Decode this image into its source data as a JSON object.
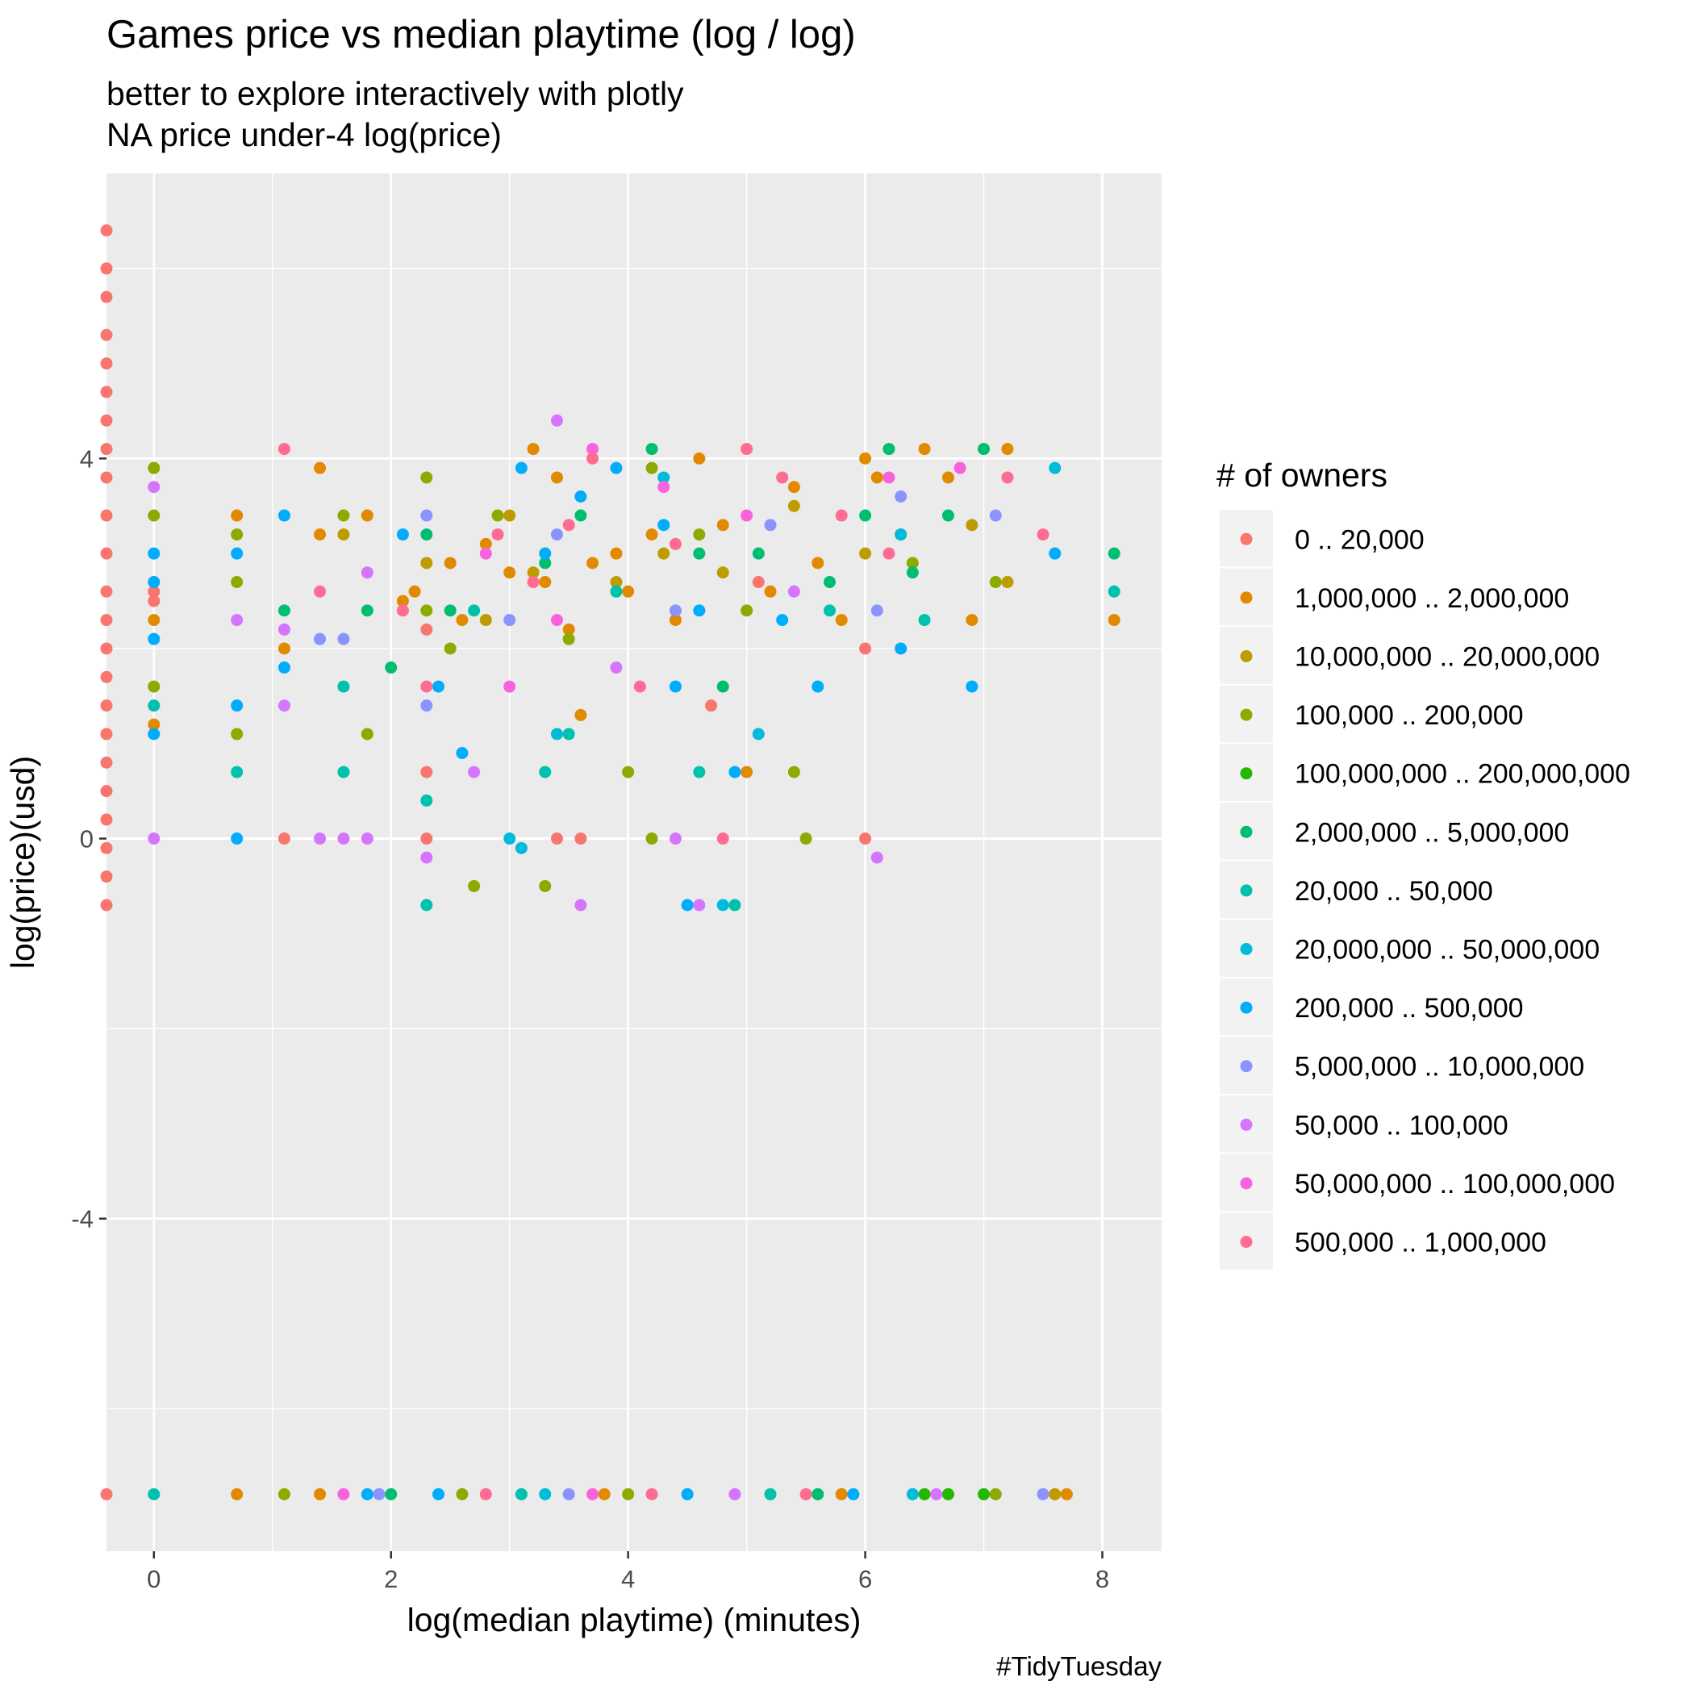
{
  "chart_data": {
    "type": "scatter",
    "title": "Games price vs median playtime (log / log)",
    "subtitle_lines": [
      "better to explore interactively with plotly",
      "NA price under-4 log(price)"
    ],
    "xlabel": "log(median playtime) (minutes)",
    "ylabel": "log(price)(usd)",
    "caption": "#TidyTuesday",
    "xlim": [
      -0.4,
      8.5
    ],
    "ylim": [
      -7.5,
      7.0
    ],
    "x_ticks": [
      0,
      2,
      4,
      6,
      8
    ],
    "x_tick_labels": [
      "0",
      "2",
      "4",
      "6",
      "8"
    ],
    "y_ticks": [
      -4,
      0,
      4
    ],
    "y_tick_labels": [
      "-4",
      "0",
      "4"
    ],
    "grid": true,
    "legend": {
      "title": "# of owners",
      "position": "right",
      "entries": [
        {
          "label": "0 .. 20,000",
          "color": "#F8766D"
        },
        {
          "label": "1,000,000 .. 2,000,000",
          "color": "#E18A00"
        },
        {
          "label": "10,000,000 .. 20,000,000",
          "color": "#BE9C00"
        },
        {
          "label": "100,000 .. 200,000",
          "color": "#8CAB00"
        },
        {
          "label": "100,000,000 .. 200,000,000",
          "color": "#24B700"
        },
        {
          "label": "2,000,000 .. 5,000,000",
          "color": "#00BE70"
        },
        {
          "label": "20,000 .. 50,000",
          "color": "#00C1AB"
        },
        {
          "label": "20,000,000 .. 50,000,000",
          "color": "#00BBDA"
        },
        {
          "label": "200,000 .. 500,000",
          "color": "#00ACFC"
        },
        {
          "label": "5,000,000 .. 10,000,000",
          "color": "#8B93FF"
        },
        {
          "label": "50,000 .. 100,000",
          "color": "#D575FE"
        },
        {
          "label": "50,000,000 .. 100,000,000",
          "color": "#F962DD"
        },
        {
          "label": "500,000 .. 1,000,000",
          "color": "#FF6C91"
        }
      ]
    },
    "series": [
      {
        "name": "0 .. 20,000",
        "points": [
          [
            -0.4,
            6.4
          ],
          [
            -0.4,
            6.0
          ],
          [
            -0.4,
            5.7
          ],
          [
            -0.4,
            5.3
          ],
          [
            -0.4,
            5.0
          ],
          [
            -0.4,
            4.7
          ],
          [
            -0.4,
            4.4
          ],
          [
            -0.4,
            4.1
          ],
          [
            -0.4,
            3.8
          ],
          [
            -0.4,
            3.4
          ],
          [
            -0.4,
            3.0
          ],
          [
            -0.4,
            2.6
          ],
          [
            -0.4,
            2.3
          ],
          [
            -0.4,
            2.0
          ],
          [
            -0.4,
            1.7
          ],
          [
            -0.4,
            1.4
          ],
          [
            -0.4,
            1.1
          ],
          [
            -0.4,
            0.8
          ],
          [
            -0.4,
            0.5
          ],
          [
            -0.4,
            0.2
          ],
          [
            -0.4,
            -0.1
          ],
          [
            -0.4,
            -0.4
          ],
          [
            -0.4,
            -0.7
          ],
          [
            0.0,
            2.6
          ],
          [
            0.0,
            2.5
          ],
          [
            1.1,
            0.0
          ],
          [
            2.3,
            0.7
          ],
          [
            2.3,
            0.0
          ],
          [
            2.3,
            2.2
          ],
          [
            3.4,
            0.0
          ],
          [
            3.6,
            0.0
          ],
          [
            4.7,
            1.4
          ],
          [
            5.1,
            2.7
          ],
          [
            6.0,
            2.0
          ],
          [
            6.0,
            0.0
          ],
          [
            -0.4,
            -6.9
          ]
        ]
      },
      {
        "name": "1,000,000 .. 2,000,000",
        "points": [
          [
            0.0,
            1.2
          ],
          [
            0.0,
            2.3
          ],
          [
            0.7,
            3.4
          ],
          [
            1.4,
            3.9
          ],
          [
            1.4,
            3.2
          ],
          [
            1.1,
            2.0
          ],
          [
            1.8,
            3.4
          ],
          [
            2.1,
            2.5
          ],
          [
            2.2,
            2.6
          ],
          [
            2.5,
            2.9
          ],
          [
            2.6,
            2.3
          ],
          [
            2.8,
            3.1
          ],
          [
            3.0,
            2.8
          ],
          [
            3.2,
            4.1
          ],
          [
            3.3,
            2.7
          ],
          [
            3.4,
            3.8
          ],
          [
            3.5,
            2.2
          ],
          [
            3.6,
            1.3
          ],
          [
            3.7,
            2.9
          ],
          [
            3.9,
            3.0
          ],
          [
            4.0,
            2.6
          ],
          [
            4.2,
            3.2
          ],
          [
            4.4,
            2.3
          ],
          [
            4.6,
            4.0
          ],
          [
            4.8,
            3.3
          ],
          [
            5.0,
            0.7
          ],
          [
            5.2,
            2.6
          ],
          [
            5.4,
            3.7
          ],
          [
            5.6,
            2.9
          ],
          [
            5.8,
            2.3
          ],
          [
            6.0,
            4.0
          ],
          [
            6.1,
            3.8
          ],
          [
            6.3,
            3.2
          ],
          [
            6.5,
            4.1
          ],
          [
            6.7,
            3.8
          ],
          [
            6.9,
            2.3
          ],
          [
            7.2,
            4.1
          ],
          [
            8.1,
            2.3
          ],
          [
            0.7,
            -6.9
          ],
          [
            1.4,
            -6.9
          ],
          [
            3.8,
            -6.9
          ],
          [
            5.8,
            -6.9
          ],
          [
            7.7,
            -6.9
          ]
        ]
      },
      {
        "name": "10,000,000 .. 20,000,000",
        "points": [
          [
            1.6,
            3.2
          ],
          [
            2.3,
            2.9
          ],
          [
            2.8,
            2.3
          ],
          [
            3.0,
            3.4
          ],
          [
            3.2,
            2.8
          ],
          [
            3.9,
            2.7
          ],
          [
            4.3,
            3.0
          ],
          [
            4.8,
            2.8
          ],
          [
            5.4,
            3.5
          ],
          [
            6.0,
            3.0
          ],
          [
            6.9,
            3.3
          ],
          [
            7.2,
            2.7
          ],
          [
            7.6,
            -6.9
          ]
        ]
      },
      {
        "name": "100,000 .. 200,000",
        "points": [
          [
            0.0,
            3.9
          ],
          [
            0.0,
            3.4
          ],
          [
            0.0,
            1.6
          ],
          [
            0.7,
            3.2
          ],
          [
            0.7,
            2.7
          ],
          [
            0.7,
            1.1
          ],
          [
            1.6,
            3.4
          ],
          [
            1.8,
            1.1
          ],
          [
            2.3,
            3.8
          ],
          [
            2.3,
            2.4
          ],
          [
            2.5,
            2.0
          ],
          [
            2.7,
            -0.5
          ],
          [
            2.9,
            3.4
          ],
          [
            3.3,
            -0.5
          ],
          [
            3.5,
            2.1
          ],
          [
            4.0,
            0.7
          ],
          [
            4.2,
            3.9
          ],
          [
            4.2,
            0.0
          ],
          [
            4.6,
            3.2
          ],
          [
            5.0,
            2.4
          ],
          [
            5.4,
            0.7
          ],
          [
            5.5,
            0.0
          ],
          [
            6.4,
            2.9
          ],
          [
            7.1,
            2.7
          ],
          [
            1.1,
            -6.9
          ],
          [
            2.6,
            -6.9
          ],
          [
            4.0,
            -6.9
          ],
          [
            7.1,
            -6.9
          ]
        ]
      },
      {
        "name": "100,000,000 .. 200,000,000",
        "points": [
          [
            6.5,
            -6.9
          ],
          [
            6.7,
            -6.9
          ],
          [
            7.0,
            -6.9
          ]
        ]
      },
      {
        "name": "2,000,000 .. 5,000,000",
        "points": [
          [
            1.1,
            2.4
          ],
          [
            1.8,
            2.4
          ],
          [
            2.0,
            1.8
          ],
          [
            2.3,
            3.2
          ],
          [
            2.5,
            2.4
          ],
          [
            3.3,
            2.9
          ],
          [
            3.6,
            3.4
          ],
          [
            4.2,
            4.1
          ],
          [
            4.6,
            3.0
          ],
          [
            4.8,
            1.6
          ],
          [
            5.1,
            3.0
          ],
          [
            5.7,
            2.7
          ],
          [
            6.0,
            3.4
          ],
          [
            6.2,
            4.1
          ],
          [
            6.4,
            2.8
          ],
          [
            6.7,
            3.4
          ],
          [
            7.0,
            4.1
          ],
          [
            8.1,
            3.0
          ],
          [
            2.0,
            -6.9
          ],
          [
            5.6,
            -6.9
          ]
        ]
      },
      {
        "name": "20,000 .. 50,000",
        "points": [
          [
            0.0,
            1.4
          ],
          [
            0.7,
            0.7
          ],
          [
            1.6,
            1.6
          ],
          [
            1.6,
            0.7
          ],
          [
            2.3,
            0.4
          ],
          [
            2.3,
            -0.7
          ],
          [
            2.7,
            2.4
          ],
          [
            3.3,
            0.7
          ],
          [
            3.5,
            1.1
          ],
          [
            3.9,
            2.6
          ],
          [
            4.6,
            0.7
          ],
          [
            4.9,
            -0.7
          ],
          [
            5.7,
            2.4
          ],
          [
            6.5,
            2.3
          ],
          [
            8.1,
            2.6
          ],
          [
            0.0,
            -6.9
          ],
          [
            3.1,
            -6.9
          ],
          [
            5.2,
            -6.9
          ]
        ]
      },
      {
        "name": "20,000,000 .. 50,000,000",
        "points": [
          [
            3.0,
            0.0
          ],
          [
            3.1,
            -0.1
          ],
          [
            3.4,
            1.1
          ],
          [
            4.3,
            3.8
          ],
          [
            4.8,
            -0.7
          ],
          [
            5.1,
            1.1
          ],
          [
            6.3,
            3.2
          ],
          [
            7.6,
            3.9
          ],
          [
            3.3,
            -6.9
          ],
          [
            6.4,
            -6.9
          ]
        ]
      },
      {
        "name": "200,000 .. 500,000",
        "points": [
          [
            0.0,
            3.0
          ],
          [
            0.0,
            2.7
          ],
          [
            0.0,
            2.1
          ],
          [
            0.0,
            1.1
          ],
          [
            0.7,
            3.0
          ],
          [
            0.7,
            1.4
          ],
          [
            0.7,
            0.0
          ],
          [
            1.1,
            3.4
          ],
          [
            1.1,
            1.8
          ],
          [
            2.1,
            3.2
          ],
          [
            2.4,
            1.6
          ],
          [
            2.6,
            0.9
          ],
          [
            3.1,
            3.9
          ],
          [
            3.3,
            3.0
          ],
          [
            3.6,
            3.6
          ],
          [
            3.9,
            3.9
          ],
          [
            4.3,
            3.3
          ],
          [
            4.4,
            1.6
          ],
          [
            4.5,
            -0.7
          ],
          [
            4.6,
            2.4
          ],
          [
            4.9,
            0.7
          ],
          [
            5.3,
            2.3
          ],
          [
            5.6,
            1.6
          ],
          [
            6.3,
            2.0
          ],
          [
            6.9,
            1.6
          ],
          [
            7.6,
            3.0
          ],
          [
            1.8,
            -6.9
          ],
          [
            2.4,
            -6.9
          ],
          [
            4.5,
            -6.9
          ],
          [
            5.9,
            -6.9
          ]
        ]
      },
      {
        "name": "5,000,000 .. 10,000,000",
        "points": [
          [
            1.4,
            2.1
          ],
          [
            1.6,
            2.1
          ],
          [
            2.3,
            3.4
          ],
          [
            2.3,
            1.4
          ],
          [
            3.0,
            2.3
          ],
          [
            3.4,
            3.2
          ],
          [
            4.4,
            2.4
          ],
          [
            5.2,
            3.3
          ],
          [
            6.1,
            2.4
          ],
          [
            6.3,
            3.6
          ],
          [
            7.1,
            3.4
          ],
          [
            1.9,
            -6.9
          ],
          [
            3.5,
            -6.9
          ],
          [
            7.5,
            -6.9
          ]
        ]
      },
      {
        "name": "50,000 .. 100,000",
        "points": [
          [
            0.0,
            3.7
          ],
          [
            0.0,
            0.0
          ],
          [
            0.7,
            2.3
          ],
          [
            1.1,
            2.2
          ],
          [
            1.1,
            1.4
          ],
          [
            1.4,
            0.0
          ],
          [
            1.6,
            0.0
          ],
          [
            1.8,
            0.0
          ],
          [
            1.8,
            2.8
          ],
          [
            2.3,
            -0.2
          ],
          [
            2.7,
            0.7
          ],
          [
            3.4,
            4.4
          ],
          [
            3.6,
            -0.7
          ],
          [
            3.9,
            1.8
          ],
          [
            4.4,
            0.0
          ],
          [
            4.6,
            -0.7
          ],
          [
            5.4,
            2.6
          ],
          [
            6.1,
            -0.2
          ],
          [
            4.9,
            -6.9
          ],
          [
            6.6,
            -6.9
          ]
        ]
      },
      {
        "name": "50,000,000 .. 100,000,000",
        "points": [
          [
            2.8,
            3.0
          ],
          [
            3.0,
            1.6
          ],
          [
            3.4,
            2.3
          ],
          [
            3.7,
            4.1
          ],
          [
            4.3,
            3.7
          ],
          [
            5.0,
            3.4
          ],
          [
            6.2,
            3.8
          ],
          [
            6.8,
            3.9
          ],
          [
            1.6,
            -6.9
          ],
          [
            3.7,
            -6.9
          ]
        ]
      },
      {
        "name": "500,000 .. 1,000,000",
        "points": [
          [
            1.1,
            4.1
          ],
          [
            1.4,
            2.6
          ],
          [
            2.1,
            2.4
          ],
          [
            2.3,
            1.6
          ],
          [
            2.9,
            3.2
          ],
          [
            3.2,
            2.7
          ],
          [
            3.5,
            3.3
          ],
          [
            3.7,
            4.0
          ],
          [
            4.1,
            1.6
          ],
          [
            4.4,
            3.1
          ],
          [
            4.8,
            0.0
          ],
          [
            5.0,
            4.1
          ],
          [
            5.3,
            3.8
          ],
          [
            5.8,
            3.4
          ],
          [
            6.2,
            3.0
          ],
          [
            7.2,
            3.8
          ],
          [
            7.5,
            3.2
          ],
          [
            2.8,
            -6.9
          ],
          [
            4.2,
            -6.9
          ],
          [
            5.5,
            -6.9
          ]
        ]
      }
    ]
  }
}
